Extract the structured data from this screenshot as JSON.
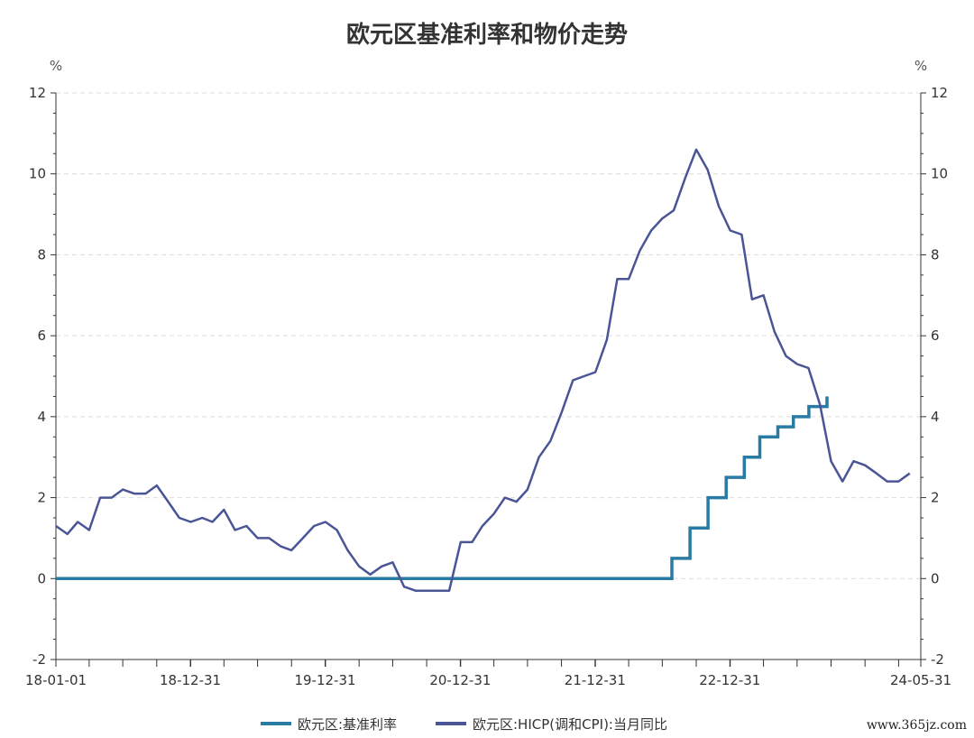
{
  "chart_data": {
    "type": "line",
    "title": "欧元区基准利率和物价走势",
    "ylabel_left": "%",
    "ylabel_right": "%",
    "ylim": [
      -2,
      12
    ],
    "yticks": [
      -2,
      0,
      2,
      4,
      6,
      8,
      10,
      12
    ],
    "ytick_labels": [
      "-2",
      "0",
      "2",
      "4",
      "6",
      "8",
      "10",
      "12"
    ],
    "xlim": [
      "2018-01-01",
      "2024-05-31"
    ],
    "xtick_labels": [
      {
        "date": "2018-01-01",
        "label": "18-01-01"
      },
      {
        "date": "2018-12-31",
        "label": "18-12-31"
      },
      {
        "date": "2019-12-31",
        "label": "19-12-31"
      },
      {
        "date": "2020-12-31",
        "label": "20-12-31"
      },
      {
        "date": "2021-12-31",
        "label": "21-12-31"
      },
      {
        "date": "2022-12-31",
        "label": "22-12-31"
      },
      {
        "date": "2024-05-31",
        "label": "24-05-31"
      }
    ],
    "grid": true,
    "legend_position": "bottom",
    "series": [
      {
        "name": "欧元区:基准利率",
        "color": "#2a7ba3",
        "step": true,
        "points": [
          [
            "2018-01-01",
            0
          ],
          [
            "2022-07-27",
            0.5
          ],
          [
            "2022-09-14",
            1.25
          ],
          [
            "2022-11-02",
            2.0
          ],
          [
            "2022-12-21",
            2.5
          ],
          [
            "2023-02-08",
            3.0
          ],
          [
            "2023-03-22",
            3.5
          ],
          [
            "2023-05-10",
            3.75
          ],
          [
            "2023-06-21",
            4.0
          ],
          [
            "2023-08-02",
            4.25
          ],
          [
            "2023-09-20",
            4.5
          ]
        ],
        "end": "2023-09-20"
      },
      {
        "name": "欧元区:HICP(调和CPI):当月同比",
        "color": "#4a5596",
        "x": [
          "2018-01",
          "2018-02",
          "2018-03",
          "2018-04",
          "2018-05",
          "2018-06",
          "2018-07",
          "2018-08",
          "2018-09",
          "2018-10",
          "2018-11",
          "2018-12",
          "2019-01",
          "2019-02",
          "2019-03",
          "2019-04",
          "2019-05",
          "2019-06",
          "2019-07",
          "2019-08",
          "2019-09",
          "2019-10",
          "2019-11",
          "2019-12",
          "2020-01",
          "2020-02",
          "2020-03",
          "2020-04",
          "2020-05",
          "2020-06",
          "2020-07",
          "2020-08",
          "2020-09",
          "2020-10",
          "2020-11",
          "2020-12",
          "2021-01",
          "2021-02",
          "2021-03",
          "2021-04",
          "2021-05",
          "2021-06",
          "2021-07",
          "2021-08",
          "2021-09",
          "2021-10",
          "2021-11",
          "2021-12",
          "2022-01",
          "2022-02",
          "2022-03",
          "2022-04",
          "2022-05",
          "2022-06",
          "2022-07",
          "2022-08",
          "2022-09",
          "2022-10",
          "2022-11",
          "2022-12",
          "2023-01",
          "2023-02",
          "2023-03",
          "2023-04",
          "2023-05",
          "2023-06",
          "2023-07",
          "2023-08",
          "2023-09",
          "2023-10",
          "2023-11",
          "2023-12",
          "2024-01",
          "2024-02",
          "2024-03",
          "2024-04",
          "2024-05"
        ],
        "values": [
          1.3,
          1.1,
          1.4,
          1.2,
          2.0,
          2.0,
          2.2,
          2.1,
          2.1,
          2.3,
          1.9,
          1.5,
          1.4,
          1.5,
          1.4,
          1.7,
          1.2,
          1.3,
          1.0,
          1.0,
          0.8,
          0.7,
          1.0,
          1.3,
          1.4,
          1.2,
          0.7,
          0.3,
          0.1,
          0.3,
          0.4,
          -0.2,
          -0.3,
          -0.3,
          -0.3,
          -0.3,
          0.9,
          0.9,
          1.3,
          1.6,
          2.0,
          1.9,
          2.2,
          3.0,
          3.4,
          4.1,
          4.9,
          5.0,
          5.1,
          5.9,
          7.4,
          7.4,
          8.1,
          8.6,
          8.9,
          9.1,
          9.9,
          10.6,
          10.1,
          9.2,
          8.6,
          8.5,
          6.9,
          7.0,
          6.1,
          5.5,
          5.3,
          5.2,
          4.3,
          2.9,
          2.4,
          2.9,
          2.8,
          2.6,
          2.4,
          2.4,
          2.6
        ]
      }
    ]
  },
  "watermark": "www.365jz.com"
}
